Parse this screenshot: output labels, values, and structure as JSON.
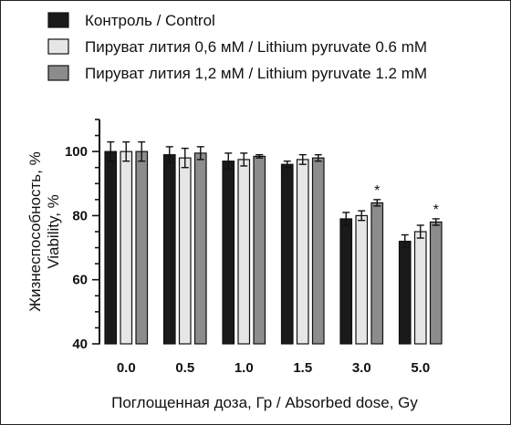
{
  "chart_data": {
    "type": "bar",
    "categories": [
      "0.0",
      "0.5",
      "1.0",
      "1.5",
      "3.0",
      "5.0"
    ],
    "series": [
      {
        "name": "Контроль / Control",
        "color": "#1a1a1a",
        "values": [
          100,
          99,
          97,
          96,
          79,
          72
        ],
        "errors": [
          3,
          2.5,
          2.5,
          1,
          2,
          2
        ]
      },
      {
        "name": "Пируват лития 0,6 мМ / Lithium pyruvate 0.6 mM",
        "color": "#e6e6e6",
        "values": [
          100,
          98,
          97.5,
          97.5,
          80,
          75
        ],
        "errors": [
          3,
          3,
          2,
          1.5,
          1.5,
          2
        ]
      },
      {
        "name": "Пируват лития 1,2 мМ / Lithium pyruvate 1.2 mM",
        "color": "#8c8c8c",
        "values": [
          100,
          99.5,
          98.5,
          98,
          84,
          78
        ],
        "errors": [
          3,
          2,
          0.5,
          1,
          1,
          1
        ]
      }
    ],
    "annotations": [
      {
        "category": "3.0",
        "series": 2,
        "text": "*"
      },
      {
        "category": "5.0",
        "series": 2,
        "text": "*"
      }
    ],
    "xlabel": "Поглощенная доза, Гр / Absorbed dose, Gy",
    "ylabel_line1": "Жизнеспособность, %",
    "ylabel_line2": "Viability, %",
    "ylim": [
      40,
      110
    ],
    "yticks": [
      40,
      60,
      80,
      100
    ],
    "grid": false,
    "legend_position": "top-left"
  }
}
